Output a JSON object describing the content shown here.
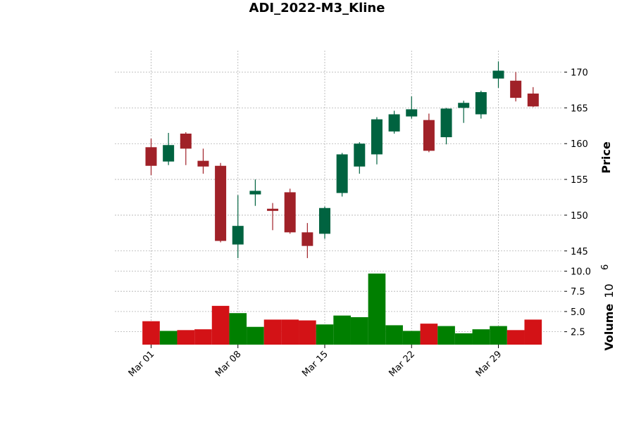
{
  "chart_data": {
    "type": "candlestick",
    "title": "ADI_2022-M3_Kline",
    "price_label": "Price",
    "volume_label": "Volume",
    "volume_multiplier_label": "10",
    "volume_multiplier_exponent": "6",
    "colors": {
      "up": "#006340",
      "down": "#a02128",
      "volume_up": "#007f00",
      "volume_down": "#d31216",
      "grid": "#b0b0b0"
    },
    "price_ylim": [
      143.7,
      173
    ],
    "price_ticks": [
      145,
      150,
      155,
      160,
      165,
      170
    ],
    "volume_ylim": [
      0.9,
      11.0
    ],
    "volume_ticks": [
      2.5,
      5.0,
      7.5,
      10.0
    ],
    "x_tick_labels": [
      {
        "label": "Mar 01",
        "index": 0
      },
      {
        "label": "Mar 08",
        "index": 5
      },
      {
        "label": "Mar 15",
        "index": 10
      },
      {
        "label": "Mar 22",
        "index": 15
      },
      {
        "label": "Mar 29",
        "index": 20
      }
    ],
    "grid": true,
    "candles": [
      {
        "date": "2022-03-01",
        "open": 159.5,
        "high": 160.7,
        "low": 155.6,
        "close": 156.9,
        "volume": 3.8
      },
      {
        "date": "2022-03-02",
        "open": 157.5,
        "high": 161.5,
        "low": 157.0,
        "close": 159.8,
        "volume": 2.6
      },
      {
        "date": "2022-03-03",
        "open": 161.4,
        "high": 161.6,
        "low": 157.0,
        "close": 159.3,
        "volume": 2.7
      },
      {
        "date": "2022-03-04",
        "open": 157.6,
        "high": 159.3,
        "low": 155.8,
        "close": 156.8,
        "volume": 2.8
      },
      {
        "date": "2022-03-07",
        "open": 156.9,
        "high": 157.3,
        "low": 146.2,
        "close": 146.4,
        "volume": 5.7
      },
      {
        "date": "2022-03-08",
        "open": 145.9,
        "high": 152.8,
        "low": 144.0,
        "close": 148.5,
        "volume": 4.8
      },
      {
        "date": "2022-03-09",
        "open": 152.9,
        "high": 155.0,
        "low": 151.3,
        "close": 153.4,
        "volume": 3.1
      },
      {
        "date": "2022-03-10",
        "open": 150.9,
        "high": 151.7,
        "low": 147.9,
        "close": 150.6,
        "volume": 4.0
      },
      {
        "date": "2022-03-11",
        "open": 153.2,
        "high": 153.7,
        "low": 147.4,
        "close": 147.6,
        "volume": 4.0
      },
      {
        "date": "2022-03-14",
        "open": 147.6,
        "high": 148.9,
        "low": 144.0,
        "close": 145.7,
        "volume": 3.9
      },
      {
        "date": "2022-03-15",
        "open": 147.4,
        "high": 151.2,
        "low": 146.7,
        "close": 151.0,
        "volume": 3.4
      },
      {
        "date": "2022-03-16",
        "open": 153.1,
        "high": 158.7,
        "low": 152.6,
        "close": 158.5,
        "volume": 4.5
      },
      {
        "date": "2022-03-17",
        "open": 156.8,
        "high": 160.2,
        "low": 155.8,
        "close": 160.0,
        "volume": 4.3
      },
      {
        "date": "2022-03-18",
        "open": 158.5,
        "high": 163.7,
        "low": 157.1,
        "close": 163.4,
        "volume": 9.7
      },
      {
        "date": "2022-03-21",
        "open": 161.7,
        "high": 164.6,
        "low": 161.4,
        "close": 164.1,
        "volume": 3.3
      },
      {
        "date": "2022-03-22",
        "open": 163.8,
        "high": 166.6,
        "low": 163.5,
        "close": 164.8,
        "volume": 2.6
      },
      {
        "date": "2022-03-23",
        "open": 163.3,
        "high": 164.2,
        "low": 158.8,
        "close": 159.0,
        "volume": 3.5
      },
      {
        "date": "2022-03-24",
        "open": 160.9,
        "high": 165.0,
        "low": 159.9,
        "close": 164.9,
        "volume": 3.2
      },
      {
        "date": "2022-03-25",
        "open": 165.0,
        "high": 166.0,
        "low": 162.9,
        "close": 165.7,
        "volume": 2.3
      },
      {
        "date": "2022-03-28",
        "open": 164.1,
        "high": 167.4,
        "low": 163.5,
        "close": 167.2,
        "volume": 2.8
      },
      {
        "date": "2022-03-29",
        "open": 169.1,
        "high": 171.5,
        "low": 167.8,
        "close": 170.2,
        "volume": 3.2
      },
      {
        "date": "2022-03-30",
        "open": 168.8,
        "high": 170.0,
        "low": 165.9,
        "close": 166.4,
        "volume": 2.7
      },
      {
        "date": "2022-03-31",
        "open": 167.0,
        "high": 167.9,
        "low": 165.1,
        "close": 165.2,
        "volume": 4.0
      }
    ]
  }
}
